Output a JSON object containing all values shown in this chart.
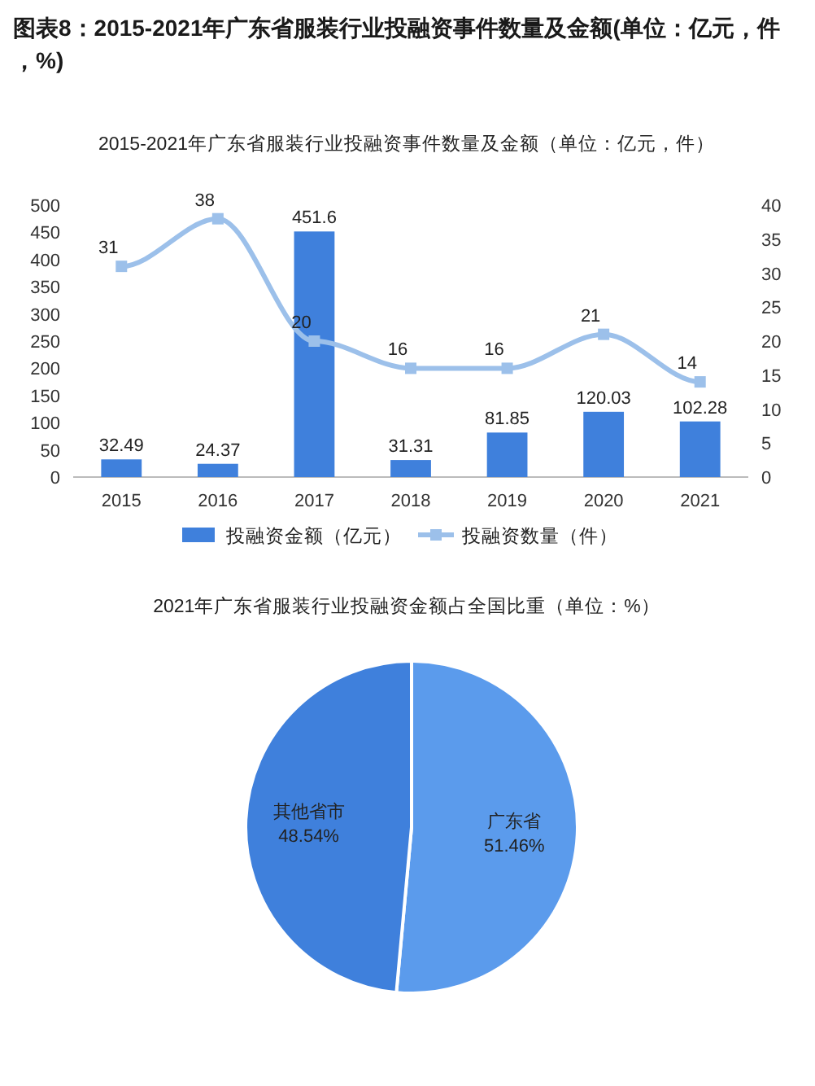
{
  "chart_data": [
    {
      "type": "bar",
      "title": "图表8：2015-2021年广东省服装行业投融资事件数量及金额(单位：亿元，件，%)",
      "subtitle": "2015-2021年广东省服装行业投融资事件数量及金额（单位：亿元，件）",
      "categories": [
        "2015",
        "2016",
        "2017",
        "2018",
        "2019",
        "2020",
        "2021"
      ],
      "series": [
        {
          "name": "投融资金额（亿元）",
          "type": "bar",
          "color": "#3f80dc",
          "values": [
            32.49,
            24.37,
            451.6,
            31.31,
            81.85,
            120.03,
            102.28
          ]
        },
        {
          "name": "投融资数量（件）",
          "type": "line",
          "axis": "y2",
          "marker": "square",
          "color": "#9cc0ea",
          "values": [
            31,
            38,
            20,
            16,
            16,
            21,
            14
          ]
        }
      ],
      "ylim": [
        0,
        500
      ],
      "yticks": [
        0,
        50,
        100,
        150,
        200,
        250,
        300,
        350,
        400,
        450,
        500
      ],
      "y2lim": [
        0,
        40
      ],
      "y2ticks": [
        0,
        5,
        10,
        15,
        20,
        25,
        30,
        35,
        40
      ],
      "data_labels": true,
      "legend": "bottom",
      "grid": false
    },
    {
      "type": "pie",
      "title": "2021年广东省服装行业投融资金额占全国比重（单位：%）",
      "categories": [
        "广东省",
        "其他省市"
      ],
      "values": [
        51.46,
        48.54
      ],
      "value_labels": [
        "51.46%",
        "48.54%"
      ],
      "colors": [
        "#5b9bec",
        "#3f80dc"
      ],
      "data_labels": true
    }
  ]
}
